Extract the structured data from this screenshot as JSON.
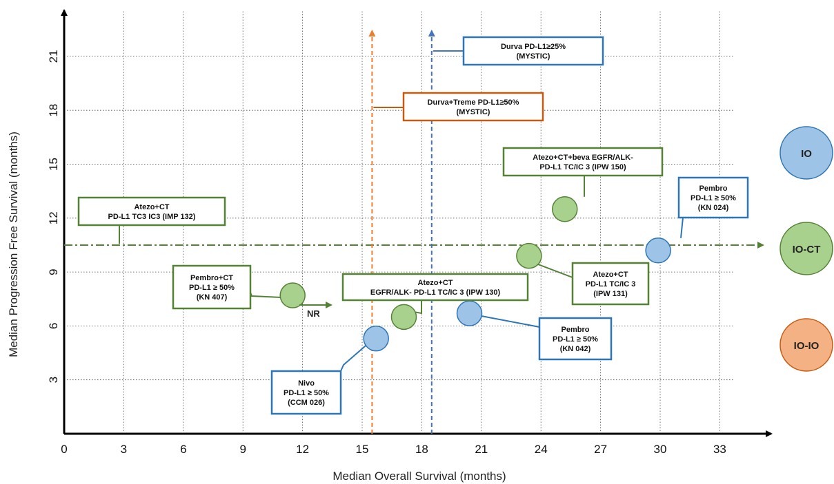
{
  "chart_data": {
    "type": "scatter",
    "xlabel": "Median Overall Survival (months)",
    "ylabel": "Median Progression Free Survival (months)",
    "xlim": [
      0,
      34
    ],
    "ylim": [
      0,
      23.5
    ],
    "x_ticks": [
      "0",
      "3",
      "6",
      "9",
      "12",
      "15",
      "18",
      "21",
      "24",
      "27",
      "30",
      "33"
    ],
    "y_ticks": [
      "3",
      "6",
      "9",
      "12",
      "15",
      "18",
      "21"
    ],
    "grid": true,
    "colors": {
      "IO": "#9dc3e6",
      "IO_border": "#2e75b6",
      "IO-CT": "#a9d18e",
      "IO-CT_border": "#548235",
      "IO-IO": "#f4b183",
      "IO-IO_border": "#c55a11"
    },
    "points": [
      {
        "group": "IO-CT",
        "x": 11.5,
        "y": 7.7,
        "label": [
          "Pembro+CT",
          "PD-L1 ≥ 50%",
          "(KN 407)"
        ]
      },
      {
        "group": "IO-CT",
        "x": 17.1,
        "y": 6.5,
        "label": [
          "Atezo+CT",
          "EGFR/ALK- PD-L1 TC/IC 3 (IPW 130)"
        ]
      },
      {
        "group": "IO",
        "x": 15.7,
        "y": 5.3,
        "label": [
          "Nivo",
          "PD-L1 ≥ 50%",
          "(CCM 026)"
        ]
      },
      {
        "group": "IO",
        "x": 20.4,
        "y": 6.7,
        "label": [
          "Pembro",
          "PD-L1 ≥ 50%",
          "(KN 042)"
        ]
      },
      {
        "group": "IO-CT",
        "x": 23.4,
        "y": 9.9,
        "label": [
          "Atezo+CT",
          "PD-L1 TC/IC 3",
          "(IPW 131)"
        ]
      },
      {
        "group": "IO-CT",
        "x": 25.2,
        "y": 12.5,
        "label": [
          "Atezo+CT+beva EGFR/ALK-",
          "PD-L1 TC/IC 3 (IPW 150)"
        ]
      },
      {
        "group": "IO",
        "x": 29.9,
        "y": 10.2,
        "label": [
          "Pembro",
          "PD-L1 ≥ 50%",
          "(KN 024)"
        ]
      }
    ],
    "open_ended": [
      {
        "group": "IO-CT",
        "direction": "horizontal",
        "y": 10.5,
        "label": [
          "Atezo+CT",
          "PD-L1 TC3 IC3 (IMP 132)"
        ]
      },
      {
        "group": "IO-IO",
        "direction": "vertical",
        "x": 15.5,
        "label": [
          "Durva+Treme PD-L1≥50%",
          "(MYSTIC)"
        ]
      },
      {
        "group": "IO",
        "direction": "vertical",
        "x": 18.5,
        "label": [
          "Durva PD-L1≥25%",
          "(MYSTIC)"
        ]
      }
    ],
    "annotations": [
      "NR"
    ],
    "legend": [
      {
        "group": "IO",
        "label": "IO"
      },
      {
        "group": "IO-CT",
        "label": "IO-CT"
      },
      {
        "group": "IO-IO",
        "label": "IO-IO"
      }
    ],
    "legend_position": "right"
  }
}
